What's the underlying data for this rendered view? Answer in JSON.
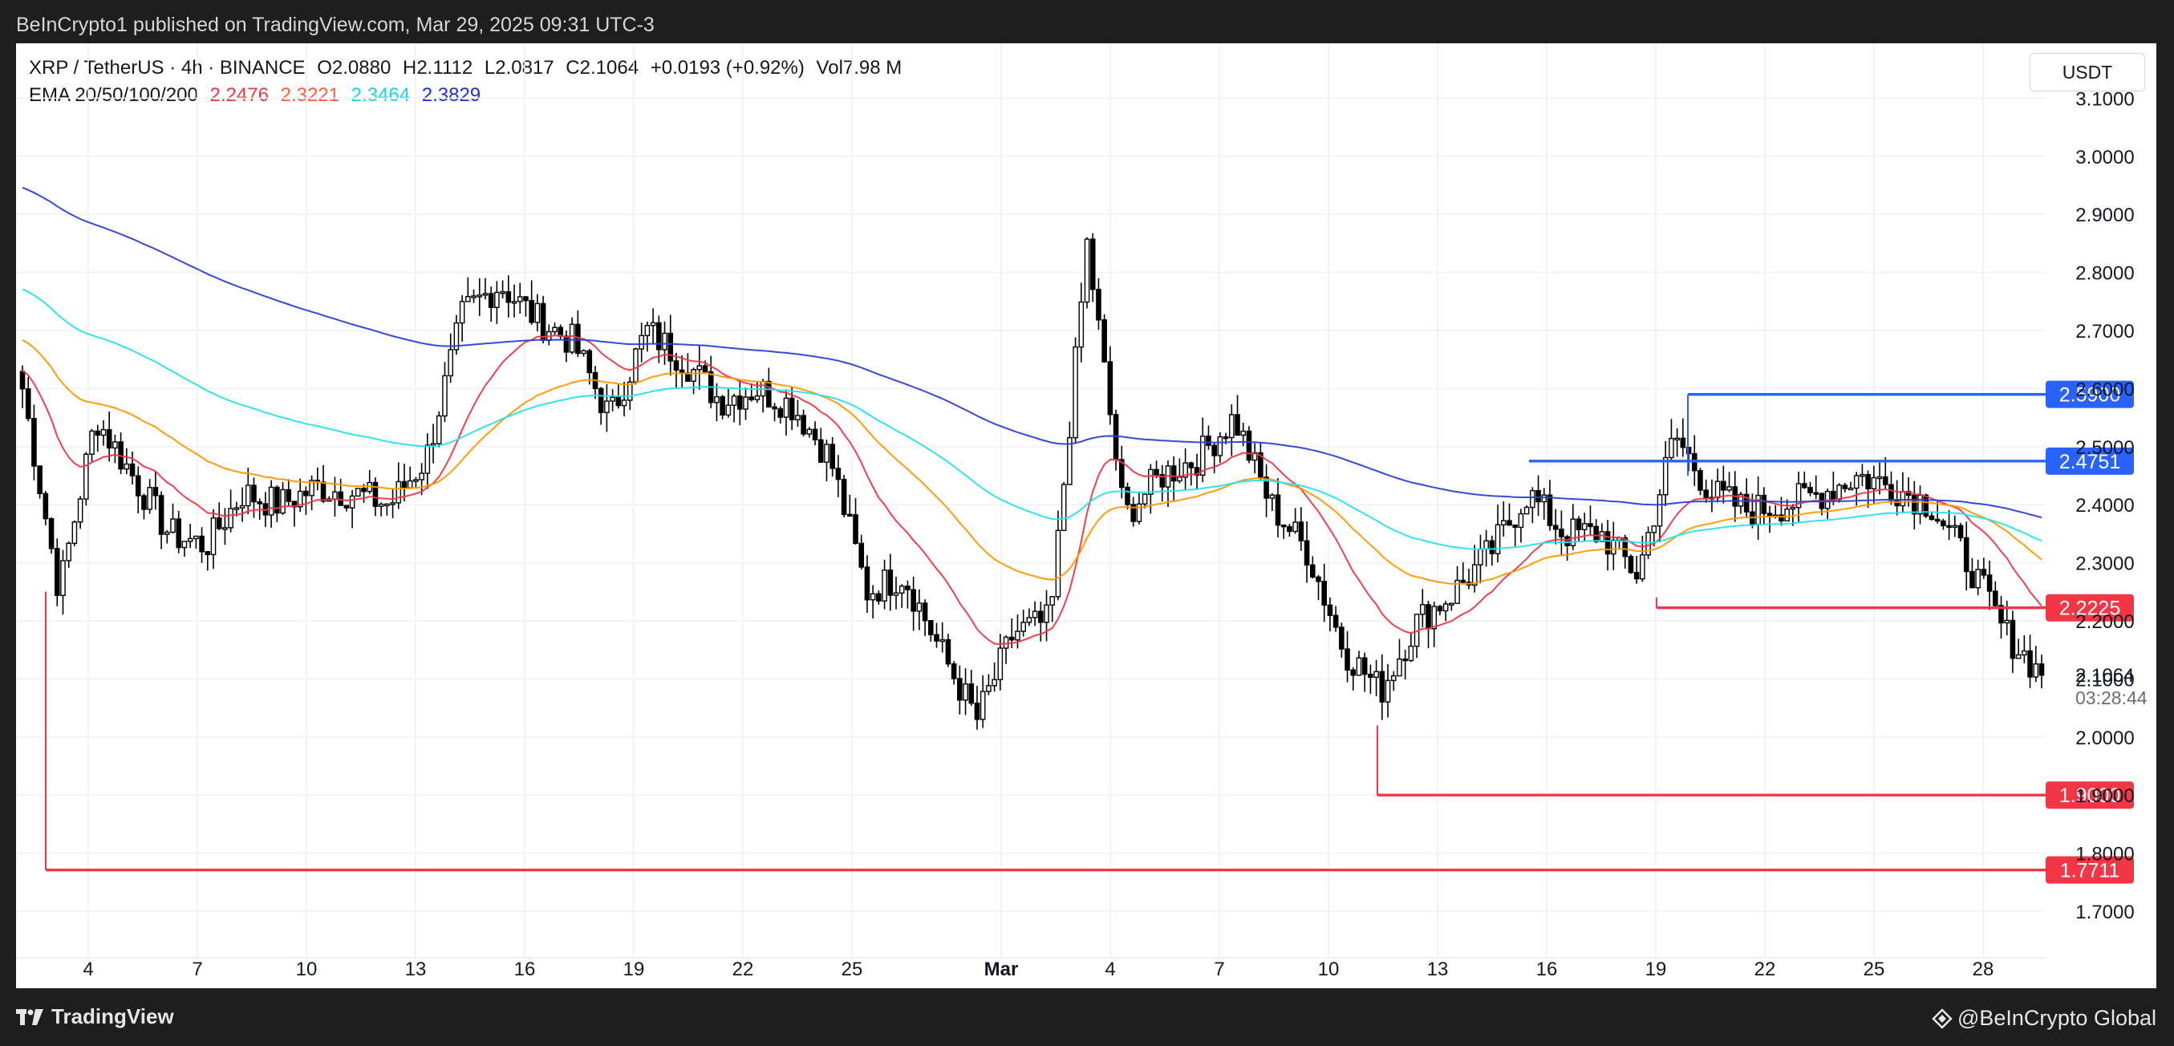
{
  "header": {
    "published": "BeInCrypto1 published on TradingView.com, Mar 29, 2025 09:31 UTC-3"
  },
  "legend": {
    "symbol": "XRP / TetherUS · 4h · BINANCE",
    "open": "O2.0880",
    "high": "H2.1112",
    "low": "L2.0817",
    "close": "C2.1064",
    "change": "+0.0193 (+0.92%)",
    "volume": "Vol7.98 M",
    "ema_label": "EMA 20/50/100/200",
    "ema_values": [
      "2.2476",
      "2.3221",
      "2.3464",
      "2.3829"
    ]
  },
  "currency_button": "USDT",
  "price_label": {
    "value": "2.1064",
    "countdown": "03:28:44"
  },
  "footer": {
    "brand": "TradingView",
    "credit": "@BeInCrypto Global"
  },
  "colors": {
    "ema20": "#f23645",
    "ema50": "#ff9800",
    "ema100": "#26e0f0",
    "ema200": "#2b3fd6",
    "resistance": "#2962ff",
    "support": "#f23645",
    "candle": "#000000"
  },
  "chart_data": {
    "type": "candlestick",
    "x_tick_labels": [
      "4",
      "7",
      "10",
      "13",
      "16",
      "19",
      "22",
      "25",
      "Mar",
      "4",
      "7",
      "10",
      "13",
      "16",
      "19",
      "22",
      "25",
      "28"
    ],
    "y_tick_labels": [
      "1.7000",
      "1.8000",
      "1.9000",
      "2.0000",
      "2.1000",
      "2.2000",
      "2.3000",
      "2.4000",
      "2.5000",
      "2.6000",
      "2.7000",
      "2.8000",
      "2.9000",
      "3.0000",
      "3.1000"
    ],
    "ylim": [
      1.66,
      3.16
    ],
    "close_series": [
      [
        "Feb 3",
        2.6
      ],
      [
        "Feb 3",
        2.25
      ],
      [
        "Feb 4",
        2.55
      ],
      [
        "Feb 5",
        2.45
      ],
      [
        "Feb 6",
        2.35
      ],
      [
        "Feb 7",
        2.33
      ],
      [
        "Feb 8",
        2.42
      ],
      [
        "Feb 9",
        2.4
      ],
      [
        "Feb 10",
        2.43
      ],
      [
        "Feb 11",
        2.42
      ],
      [
        "Feb 12",
        2.4
      ],
      [
        "Feb 13",
        2.48
      ],
      [
        "Feb 14",
        2.73
      ],
      [
        "Feb 15",
        2.78
      ],
      [
        "Feb 16",
        2.72
      ],
      [
        "Feb 17",
        2.68
      ],
      [
        "Feb 18",
        2.55
      ],
      [
        "Feb 19",
        2.7
      ],
      [
        "Feb 20",
        2.65
      ],
      [
        "Feb 21",
        2.58
      ],
      [
        "Feb 22",
        2.6
      ],
      [
        "Feb 23",
        2.57
      ],
      [
        "Feb 24",
        2.48
      ],
      [
        "Feb 25",
        2.25
      ],
      [
        "Feb 26",
        2.28
      ],
      [
        "Feb 27",
        2.15
      ],
      [
        "Feb 28",
        2.03
      ],
      [
        "Mar 1",
        2.18
      ],
      [
        "Mar 2",
        2.2
      ],
      [
        "Mar 3",
        2.85
      ],
      [
        "Mar 4",
        2.38
      ],
      [
        "Mar 5",
        2.45
      ],
      [
        "Mar 6",
        2.48
      ],
      [
        "Mar 7",
        2.55
      ],
      [
        "Mar 8",
        2.4
      ],
      [
        "Mar 9",
        2.32
      ],
      [
        "Mar 10",
        2.15
      ],
      [
        "Mar 11",
        2.08
      ],
      [
        "Mar 12",
        2.2
      ],
      [
        "Mar 13",
        2.25
      ],
      [
        "Mar 14",
        2.32
      ],
      [
        "Mar 15",
        2.42
      ],
      [
        "Mar 16",
        2.35
      ],
      [
        "Mar 17",
        2.35
      ],
      [
        "Mar 18",
        2.28
      ],
      [
        "Mar 19",
        2.52
      ],
      [
        "Mar 20",
        2.42
      ],
      [
        "Mar 21",
        2.39
      ],
      [
        "Mar 22",
        2.4
      ],
      [
        "Mar 23",
        2.42
      ],
      [
        "Mar 24",
        2.45
      ],
      [
        "Mar 25",
        2.43
      ],
      [
        "Mar 26",
        2.4
      ],
      [
        "Mar 27",
        2.3
      ],
      [
        "Mar 28",
        2.18
      ],
      [
        "Mar 29",
        2.1064
      ]
    ],
    "ema_series": [
      {
        "name": "EMA 20",
        "last": 2.2476
      },
      {
        "name": "EMA 50",
        "last": 2.3221
      },
      {
        "name": "EMA 100",
        "last": 2.3464
      },
      {
        "name": "EMA 200",
        "last": 2.3829
      }
    ],
    "levels": [
      {
        "label": "2.5900",
        "value": 2.59,
        "kind": "resistance"
      },
      {
        "label": "2.4751",
        "value": 2.4751,
        "kind": "resistance"
      },
      {
        "label": "2.2225",
        "value": 2.2225,
        "kind": "support"
      },
      {
        "label": "1.9000",
        "value": 1.9,
        "kind": "support"
      },
      {
        "label": "1.7711",
        "value": 1.7711,
        "kind": "support"
      }
    ]
  }
}
